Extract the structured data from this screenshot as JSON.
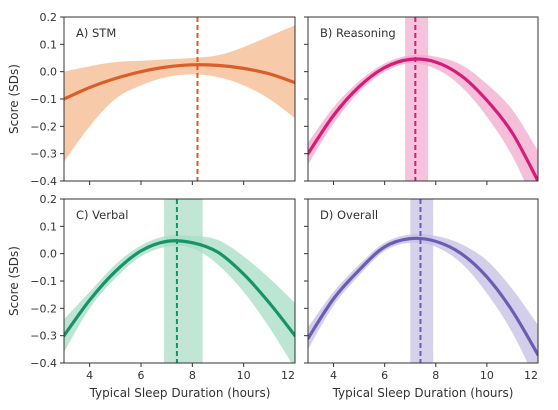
{
  "figure": {
    "shared_ylabel": "Score (SDs)",
    "shared_xlabel": "Typical Sleep Duration (hours)"
  },
  "chart_data": [
    {
      "type": "line",
      "title": "A) STM",
      "xlabel": "Typical Sleep Duration (hours)",
      "ylabel": "Score (SDs)",
      "xlim": [
        3,
        12
      ],
      "ylim": [
        -0.4,
        0.2
      ],
      "xticks": [
        4,
        6,
        8,
        10
      ],
      "yticks": [
        0.2,
        0.1,
        0.0,
        -0.1,
        -0.2,
        -0.3,
        -0.4
      ],
      "grid": false,
      "color": "#d95f2a",
      "band_color": "#f4b98c",
      "peak_x": 8.2,
      "peak_ci": [
        8.2,
        8.2
      ],
      "x": [
        3,
        4,
        5,
        6,
        7,
        8,
        9,
        10,
        11,
        12
      ],
      "y": [
        -0.1,
        -0.058,
        -0.025,
        0.0,
        0.017,
        0.025,
        0.023,
        0.012,
        -0.008,
        -0.04
      ],
      "y_lower": [
        -0.33,
        -0.2,
        -0.1,
        -0.05,
        -0.02,
        -0.01,
        -0.02,
        -0.05,
        -0.1,
        -0.17
      ],
      "y_upper": [
        0.0,
        0.02,
        0.035,
        0.04,
        0.045,
        0.05,
        0.06,
        0.09,
        0.13,
        0.17
      ]
    },
    {
      "type": "line",
      "title": "B) Reasoning",
      "xlabel": "Typical Sleep Duration (hours)",
      "ylabel": "Score (SDs)",
      "xlim": [
        3,
        12
      ],
      "ylim": [
        -0.4,
        0.2
      ],
      "xticks": [
        4,
        6,
        8,
        10
      ],
      "yticks": [
        0.2,
        0.1,
        0.0,
        -0.1,
        -0.2,
        -0.3,
        -0.4
      ],
      "grid": false,
      "color": "#d81b7a",
      "band_color": "#f1a9cc",
      "peak_x": 7.2,
      "peak_ci": [
        6.8,
        7.7
      ],
      "x": [
        3,
        4,
        5,
        6,
        7,
        8,
        9,
        10,
        11,
        12
      ],
      "y": [
        -0.3,
        -0.16,
        -0.055,
        0.015,
        0.045,
        0.035,
        -0.015,
        -0.105,
        -0.225,
        -0.4
      ],
      "y_lower": [
        -0.34,
        -0.19,
        -0.075,
        0.0,
        0.03,
        0.01,
        -0.055,
        -0.165,
        -0.31,
        -0.51
      ],
      "y_upper": [
        -0.26,
        -0.13,
        -0.035,
        0.03,
        0.06,
        0.055,
        0.025,
        -0.045,
        -0.14,
        -0.29
      ]
    },
    {
      "type": "line",
      "title": "C) Verbal",
      "xlabel": "Typical Sleep Duration (hours)",
      "ylabel": "Score (SDs)",
      "xlim": [
        3,
        12
      ],
      "ylim": [
        -0.4,
        0.2
      ],
      "xticks": [
        4,
        6,
        8,
        10
      ],
      "yticks": [
        0.2,
        0.1,
        0.0,
        -0.1,
        -0.2,
        -0.3,
        -0.4
      ],
      "grid": false,
      "color": "#17936a",
      "band_color": "#a6dcc4",
      "peak_x": 7.4,
      "peak_ci": [
        6.9,
        8.4
      ],
      "x": [
        3,
        4,
        5,
        6,
        7,
        8,
        9,
        10,
        11,
        12
      ],
      "y": [
        -0.3,
        -0.17,
        -0.065,
        0.01,
        0.045,
        0.04,
        0.005,
        -0.075,
        -0.18,
        -0.3
      ],
      "y_lower": [
        -0.36,
        -0.2,
        -0.09,
        -0.01,
        0.025,
        0.02,
        -0.04,
        -0.14,
        -0.27,
        -0.42
      ],
      "y_upper": [
        -0.24,
        -0.14,
        -0.04,
        0.03,
        0.065,
        0.065,
        0.05,
        -0.01,
        -0.09,
        -0.18
      ]
    },
    {
      "type": "line",
      "title": "D) Overall",
      "xlabel": "Typical Sleep Duration (hours)",
      "ylabel": "Score (SDs)",
      "xlim": [
        3,
        12
      ],
      "ylim": [
        -0.4,
        0.2
      ],
      "xticks": [
        4,
        6,
        8,
        10
      ],
      "yticks": [
        0.2,
        0.1,
        0.0,
        -0.1,
        -0.2,
        -0.3,
        -0.4
      ],
      "grid": false,
      "color": "#6a5eb3",
      "band_color": "#c4bfe4",
      "peak_x": 7.4,
      "peak_ci": [
        7.0,
        7.9
      ],
      "x": [
        3,
        4,
        5,
        6,
        7,
        8,
        9,
        10,
        11,
        12
      ],
      "y": [
        -0.31,
        -0.165,
        -0.06,
        0.025,
        0.055,
        0.045,
        0.0,
        -0.085,
        -0.21,
        -0.37
      ],
      "y_lower": [
        -0.35,
        -0.19,
        -0.08,
        0.01,
        0.04,
        0.025,
        -0.035,
        -0.145,
        -0.29,
        -0.48
      ],
      "y_upper": [
        -0.27,
        -0.14,
        -0.04,
        0.04,
        0.07,
        0.065,
        0.035,
        -0.025,
        -0.13,
        -0.26
      ]
    }
  ]
}
